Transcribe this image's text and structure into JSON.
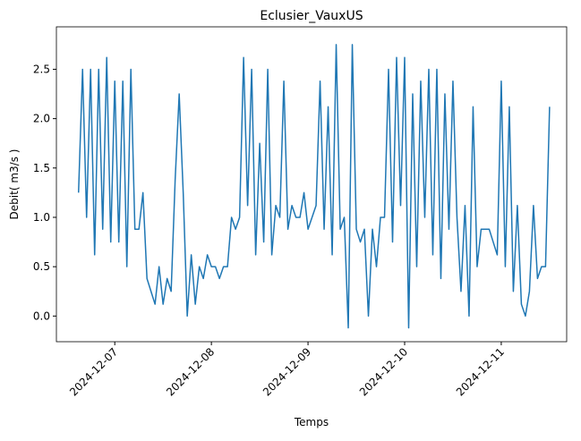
{
  "chart_data": {
    "type": "line",
    "title": "Eclusier_VauxUS",
    "x_label": "Temps",
    "y_label": "Debit( m3/s )",
    "color": "#1f77b4",
    "x": [
      "2024-12-06 15:00",
      "2024-12-06 16:00",
      "2024-12-06 17:00",
      "2024-12-06 18:00",
      "2024-12-06 19:00",
      "2024-12-06 20:00",
      "2024-12-06 21:00",
      "2024-12-06 22:00",
      "2024-12-06 23:00",
      "2024-12-07 00:00",
      "2024-12-07 01:00",
      "2024-12-07 02:00",
      "2024-12-07 03:00",
      "2024-12-07 04:00",
      "2024-12-07 05:00",
      "2024-12-07 06:00",
      "2024-12-07 07:00",
      "2024-12-07 08:00",
      "2024-12-07 09:00",
      "2024-12-07 10:00",
      "2024-12-07 11:00",
      "2024-12-07 12:00",
      "2024-12-07 13:00",
      "2024-12-07 14:00",
      "2024-12-07 15:00",
      "2024-12-07 16:00",
      "2024-12-07 17:00",
      "2024-12-07 18:00",
      "2024-12-07 19:00",
      "2024-12-07 20:00",
      "2024-12-07 21:00",
      "2024-12-07 22:00",
      "2024-12-07 23:00",
      "2024-12-08 00:00",
      "2024-12-08 01:00",
      "2024-12-08 02:00",
      "2024-12-08 03:00",
      "2024-12-08 04:00",
      "2024-12-08 05:00",
      "2024-12-08 06:00",
      "2024-12-08 07:00",
      "2024-12-08 08:00",
      "2024-12-08 09:00",
      "2024-12-08 10:00",
      "2024-12-08 11:00",
      "2024-12-08 12:00",
      "2024-12-08 13:00",
      "2024-12-08 14:00",
      "2024-12-08 15:00",
      "2024-12-08 16:00",
      "2024-12-08 17:00",
      "2024-12-08 18:00",
      "2024-12-08 19:00",
      "2024-12-08 20:00",
      "2024-12-08 21:00",
      "2024-12-08 22:00",
      "2024-12-08 23:00",
      "2024-12-09 00:00",
      "2024-12-09 01:00",
      "2024-12-09 02:00",
      "2024-12-09 03:00",
      "2024-12-09 04:00",
      "2024-12-09 05:00",
      "2024-12-09 06:00",
      "2024-12-09 07:00",
      "2024-12-09 08:00",
      "2024-12-09 09:00",
      "2024-12-09 10:00",
      "2024-12-09 11:00",
      "2024-12-09 12:00",
      "2024-12-09 13:00",
      "2024-12-09 14:00",
      "2024-12-09 15:00",
      "2024-12-09 16:00",
      "2024-12-09 17:00",
      "2024-12-09 18:00",
      "2024-12-09 19:00",
      "2024-12-09 20:00",
      "2024-12-09 21:00",
      "2024-12-09 22:00",
      "2024-12-09 23:00",
      "2024-12-10 00:00",
      "2024-12-10 01:00",
      "2024-12-10 02:00",
      "2024-12-10 03:00",
      "2024-12-10 04:00",
      "2024-12-10 05:00",
      "2024-12-10 06:00",
      "2024-12-10 07:00",
      "2024-12-10 08:00",
      "2024-12-10 09:00",
      "2024-12-10 10:00",
      "2024-12-10 11:00",
      "2024-12-10 12:00",
      "2024-12-10 13:00",
      "2024-12-10 14:00",
      "2024-12-10 15:00",
      "2024-12-10 16:00",
      "2024-12-10 17:00",
      "2024-12-10 18:00",
      "2024-12-10 19:00",
      "2024-12-10 20:00",
      "2024-12-10 21:00",
      "2024-12-10 22:00",
      "2024-12-10 23:00",
      "2024-12-11 00:00",
      "2024-12-11 01:00",
      "2024-12-11 02:00",
      "2024-12-11 03:00",
      "2024-12-11 04:00",
      "2024-12-11 05:00",
      "2024-12-11 06:00",
      "2024-12-11 07:00",
      "2024-12-11 08:00",
      "2024-12-11 09:00",
      "2024-12-11 10:00",
      "2024-12-11 11:00",
      "2024-12-11 12:00"
    ],
    "values": [
      1.25,
      2.5,
      1.0,
      2.5,
      0.62,
      2.5,
      0.88,
      2.62,
      0.75,
      2.38,
      0.75,
      2.38,
      0.5,
      2.5,
      0.88,
      0.88,
      1.25,
      0.38,
      0.25,
      0.12,
      0.5,
      0.12,
      0.38,
      0.25,
      1.38,
      2.25,
      1.25,
      0.0,
      0.62,
      0.12,
      0.5,
      0.38,
      0.62,
      0.5,
      0.5,
      0.38,
      0.5,
      0.5,
      1.0,
      0.88,
      1.0,
      2.62,
      1.12,
      2.5,
      0.62,
      1.75,
      0.75,
      2.5,
      0.62,
      1.12,
      1.0,
      2.38,
      0.88,
      1.12,
      1.0,
      1.0,
      1.25,
      0.88,
      1.0,
      1.12,
      2.38,
      0.88,
      2.12,
      0.62,
      2.75,
      0.88,
      1.0,
      -0.12,
      2.75,
      0.88,
      0.75,
      0.88,
      0.0,
      0.88,
      0.5,
      1.0,
      1.0,
      2.5,
      0.75,
      2.62,
      1.12,
      2.62,
      -0.12,
      2.25,
      0.5,
      2.38,
      1.0,
      2.5,
      0.62,
      2.5,
      0.38,
      2.25,
      0.88,
      2.38,
      1.0,
      0.25,
      1.12,
      0.0,
      2.12,
      0.5,
      0.88,
      0.88,
      0.88,
      0.75,
      0.62,
      2.38,
      0.5,
      2.12,
      0.25,
      1.12,
      0.12,
      0.0,
      0.25,
      1.12,
      0.38,
      0.5,
      0.5,
      2.12
    ],
    "xlim": [
      "2024-12-06 09:30",
      "2024-12-11 16:15"
    ],
    "xticks": [
      "2024-12-07",
      "2024-12-08",
      "2024-12-09",
      "2024-12-10",
      "2024-12-11"
    ],
    "ylim": [
      -0.26,
      2.93
    ],
    "yticks": [
      {
        "value": 0,
        "label": "0.0"
      },
      0.5,
      {
        "value": 1,
        "label": "1.0"
      },
      1.5,
      {
        "value": 2,
        "label": "2.0"
      },
      2.5
    ]
  }
}
